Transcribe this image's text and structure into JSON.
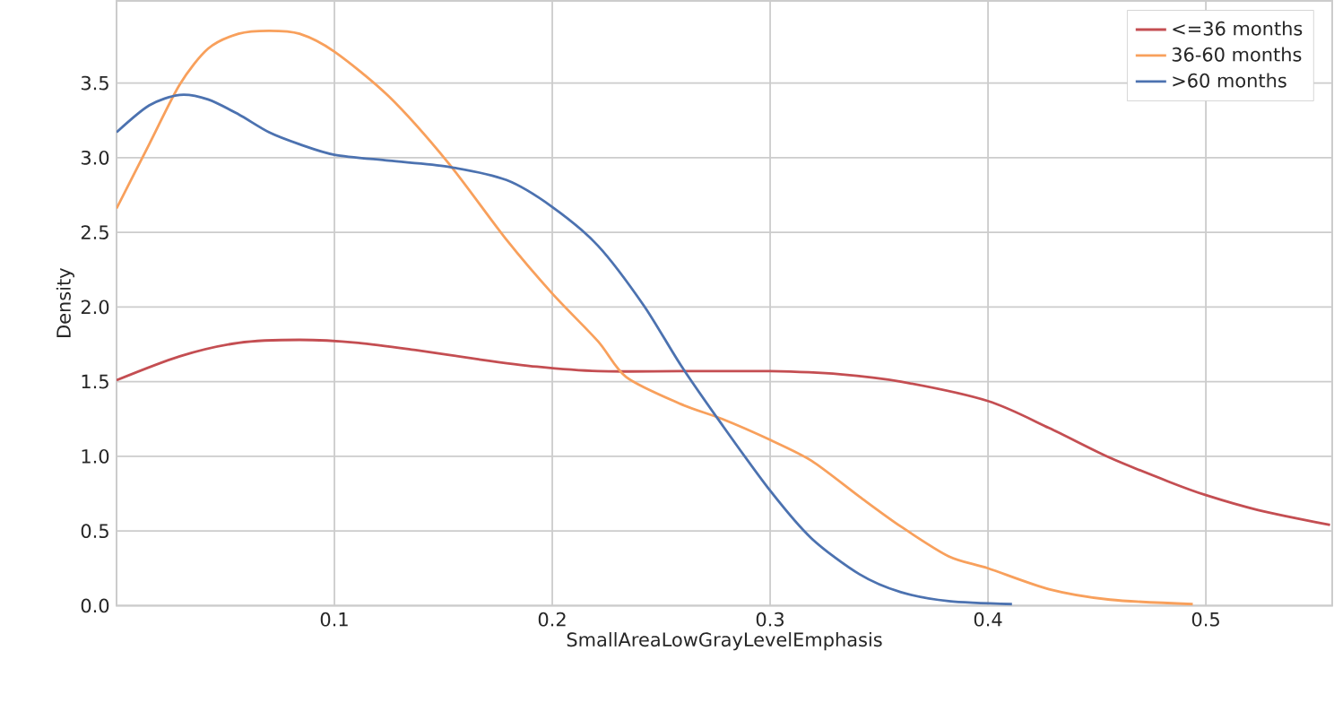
{
  "chart_data": {
    "type": "line",
    "xlabel": "SmallAreaLowGrayLevelEmphasis",
    "ylabel": "Density",
    "xlim": [
      0,
      0.558
    ],
    "ylim": [
      0,
      4.05
    ],
    "xticks": [
      0.1,
      0.2,
      0.3,
      0.4,
      0.5
    ],
    "yticks": [
      {
        "value": 0,
        "label": "0.0"
      },
      {
        "value": 0.5,
        "label": "0.5"
      },
      {
        "value": 1,
        "label": "1.0"
      },
      {
        "value": 1.5,
        "label": "1.5"
      },
      {
        "value": 2,
        "label": "2.0"
      },
      {
        "value": 2.5,
        "label": "2.5"
      },
      {
        "value": 3,
        "label": "3.0"
      },
      {
        "value": 3.5,
        "label": "3.5"
      }
    ],
    "grid": true,
    "legend": "top right",
    "marker": "none",
    "line_style": "solid",
    "series": [
      {
        "name": "<=36 months",
        "color": "#c44e52",
        "x": [
          0,
          0.029,
          0.056,
          0.084,
          0.111,
          0.138,
          0.166,
          0.193,
          0.221,
          0.259,
          0.3,
          0.332,
          0.36,
          0.4,
          0.428,
          0.456,
          0.483,
          0.5,
          0.524,
          0.557
        ],
        "values": [
          1.51,
          1.67,
          1.76,
          1.78,
          1.76,
          1.71,
          1.65,
          1.6,
          1.57,
          1.57,
          1.57,
          1.55,
          1.5,
          1.37,
          1.19,
          0.99,
          0.83,
          0.74,
          0.64,
          0.54
        ]
      },
      {
        "name": "36-60 months",
        "color": "#f8a05c",
        "x": [
          0,
          0.015,
          0.029,
          0.042,
          0.056,
          0.07,
          0.084,
          0.1,
          0.125,
          0.152,
          0.179,
          0.2,
          0.221,
          0.234,
          0.259,
          0.278,
          0.3,
          0.319,
          0.341,
          0.36,
          0.382,
          0.4,
          0.428,
          0.456,
          0.494
        ],
        "values": [
          2.66,
          3.09,
          3.49,
          3.73,
          3.83,
          3.85,
          3.83,
          3.71,
          3.41,
          2.97,
          2.45,
          2.09,
          1.77,
          1.53,
          1.35,
          1.25,
          1.11,
          0.97,
          0.73,
          0.53,
          0.33,
          0.25,
          0.11,
          0.04,
          0.01
        ]
      },
      {
        "name": ">60 months",
        "color": "#4c72b0",
        "x": [
          0,
          0.015,
          0.029,
          0.042,
          0.056,
          0.07,
          0.084,
          0.1,
          0.125,
          0.152,
          0.179,
          0.2,
          0.221,
          0.242,
          0.259,
          0.278,
          0.3,
          0.319,
          0.341,
          0.36,
          0.382,
          0.411
        ],
        "values": [
          3.17,
          3.35,
          3.42,
          3.39,
          3.29,
          3.17,
          3.09,
          3.02,
          2.98,
          2.94,
          2.85,
          2.67,
          2.41,
          2.01,
          1.61,
          1.21,
          0.77,
          0.45,
          0.21,
          0.09,
          0.03,
          0.01
        ]
      }
    ]
  }
}
